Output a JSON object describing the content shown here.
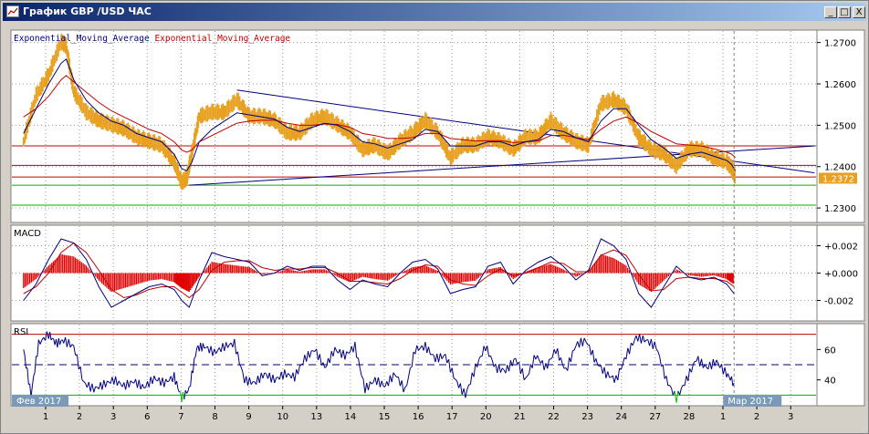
{
  "window": {
    "title": "График GBP /USD ЧАС",
    "buttons": {
      "minimize": "_",
      "restore": "□",
      "close": "X"
    }
  },
  "chart_data": {
    "type": "line",
    "symbol": "GBP /USD",
    "timeframe": "ЧАС",
    "panels": [
      {
        "name": "price",
        "legend": [
          "Exponential_Moving_Average",
          "Exponential_Moving_Average"
        ],
        "legend_colors": [
          "#000080",
          "#c00000"
        ],
        "ylim": [
          1.2265,
          1.273
        ],
        "yticks": [
          "1.2700",
          "1.2600",
          "1.2500",
          "1.2400",
          "1.2300"
        ],
        "ytick_values": [
          1.27,
          1.26,
          1.25,
          1.24,
          1.23
        ],
        "current_price_label": "1.2372",
        "current_price": 1.2372,
        "x": [
          1,
          1.5,
          2,
          2.5,
          2.7,
          3,
          3.5,
          4,
          4.5,
          5,
          5.5,
          6,
          6.5,
          7,
          7.3,
          7.5,
          7.7,
          8,
          8.5,
          9,
          9.5,
          10,
          10.5,
          11,
          11.5,
          12,
          12.5,
          13,
          13.5,
          14,
          14.5,
          15,
          15.5,
          16,
          16.5,
          17,
          17.5,
          18,
          18.5,
          19,
          19.5,
          20,
          20.5,
          21,
          21.5,
          22,
          22.5,
          23,
          23.5,
          24,
          24.5,
          25,
          25.5,
          26,
          26.5,
          27,
          27.5,
          28,
          28.5,
          29,
          29.2,
          29.35
        ],
        "close": [
          1.246,
          1.257,
          1.262,
          1.27,
          1.269,
          1.258,
          1.253,
          1.251,
          1.25,
          1.249,
          1.247,
          1.246,
          1.245,
          1.241,
          1.236,
          1.237,
          1.243,
          1.252,
          1.253,
          1.253,
          1.256,
          1.252,
          1.252,
          1.251,
          1.248,
          1.248,
          1.251,
          1.252,
          1.25,
          1.248,
          1.244,
          1.245,
          1.243,
          1.246,
          1.248,
          1.251,
          1.248,
          1.242,
          1.245,
          1.245,
          1.247,
          1.246,
          1.244,
          1.247,
          1.247,
          1.251,
          1.248,
          1.246,
          1.245,
          1.255,
          1.256,
          1.254,
          1.247,
          1.244,
          1.243,
          1.24,
          1.244,
          1.244,
          1.242,
          1.241,
          1.2395,
          1.2372
        ],
        "ema_fast": [
          1.248,
          1.254,
          1.26,
          1.265,
          1.266,
          1.261,
          1.256,
          1.253,
          1.251,
          1.25,
          1.248,
          1.247,
          1.246,
          1.243,
          1.2395,
          1.239,
          1.241,
          1.246,
          1.249,
          1.251,
          1.253,
          1.2525,
          1.252,
          1.2515,
          1.2495,
          1.2485,
          1.2495,
          1.2505,
          1.25,
          1.2485,
          1.246,
          1.2455,
          1.2445,
          1.2455,
          1.2465,
          1.249,
          1.2485,
          1.245,
          1.245,
          1.245,
          1.246,
          1.246,
          1.245,
          1.246,
          1.2465,
          1.249,
          1.2485,
          1.247,
          1.246,
          1.251,
          1.254,
          1.254,
          1.25,
          1.2465,
          1.2445,
          1.242,
          1.243,
          1.2435,
          1.2425,
          1.2415,
          1.2405,
          1.239
        ],
        "ema_slow": [
          1.252,
          1.254,
          1.257,
          1.261,
          1.262,
          1.2605,
          1.258,
          1.2555,
          1.2535,
          1.252,
          1.2505,
          1.249,
          1.248,
          1.246,
          1.244,
          1.2435,
          1.244,
          1.246,
          1.2475,
          1.249,
          1.2505,
          1.251,
          1.2512,
          1.2512,
          1.2505,
          1.25,
          1.25,
          1.2503,
          1.2502,
          1.2495,
          1.248,
          1.2475,
          1.2468,
          1.2468,
          1.247,
          1.248,
          1.248,
          1.2468,
          1.2465,
          1.2462,
          1.2463,
          1.2463,
          1.2458,
          1.246,
          1.2462,
          1.2475,
          1.2476,
          1.247,
          1.2465,
          1.249,
          1.251,
          1.252,
          1.2505,
          1.2485,
          1.247,
          1.2455,
          1.2452,
          1.245,
          1.2443,
          1.2435,
          1.243,
          1.2422
        ],
        "horizontal_levels": [
          {
            "value": 1.245,
            "color": "#c00000"
          },
          {
            "value": 1.2403,
            "color": "#c00000"
          },
          {
            "value": 1.2375,
            "color": "#c00000"
          },
          {
            "value": 1.2355,
            "color": "#00b000"
          },
          {
            "value": 1.2307,
            "color": "#00b000"
          }
        ],
        "trendlines": [
          {
            "from": [
              9.5,
              1.2585
            ],
            "to": [
              32.5,
              1.2385
            ],
            "color": "#000080"
          },
          {
            "from": [
              7.6,
              1.2355
            ],
            "to": [
              32.5,
              1.245
            ],
            "color": "#000080"
          }
        ]
      },
      {
        "name": "MACD",
        "label": "MACD",
        "ylim": [
          -0.0035,
          0.0035
        ],
        "yticks": [
          "+0.002",
          "+0.000",
          "-0.002"
        ],
        "ytick_values": [
          0.002,
          0.0,
          -0.002
        ],
        "x": [
          1,
          1.5,
          2,
          2.5,
          3,
          3.5,
          4,
          4.5,
          5,
          5.5,
          6,
          6.5,
          7,
          7.3,
          7.6,
          8,
          8.5,
          9,
          9.5,
          10,
          10.5,
          11,
          11.5,
          12,
          12.5,
          13,
          13.5,
          14,
          14.5,
          15,
          15.5,
          16,
          16.5,
          17,
          17.5,
          18,
          18.5,
          19,
          19.5,
          20,
          20.5,
          21,
          21.5,
          22,
          22.5,
          23,
          23.5,
          24,
          24.5,
          25,
          25.5,
          26,
          26.5,
          27,
          27.5,
          28,
          28.5,
          29,
          29.3
        ],
        "macd": [
          -0.002,
          -0.0008,
          0.001,
          0.0025,
          0.0022,
          0.001,
          -0.001,
          -0.0025,
          -0.002,
          -0.0015,
          -0.001,
          -0.0008,
          -0.0012,
          -0.002,
          -0.0025,
          -0.0005,
          0.0015,
          0.0012,
          0.001,
          0.0008,
          -0.0002,
          0.0,
          0.0005,
          0.0002,
          0.0005,
          0.0005,
          -0.0005,
          -0.0012,
          -0.0005,
          -0.0008,
          -0.001,
          0.0,
          0.0008,
          0.001,
          0.0003,
          -0.0015,
          -0.0012,
          -0.001,
          0.0005,
          0.0008,
          -0.0008,
          0.0002,
          0.0008,
          0.0012,
          0.0005,
          -0.0005,
          0.0002,
          0.0025,
          0.002,
          0.001,
          -0.0015,
          -0.0025,
          -0.001,
          0.0005,
          -0.0003,
          -0.0005,
          -0.0003,
          -0.0008,
          -0.0015
        ],
        "signal": [
          -0.0015,
          -0.001,
          0.0,
          0.0015,
          0.0022,
          0.0015,
          0.0002,
          -0.0012,
          -0.0018,
          -0.0016,
          -0.0012,
          -0.001,
          -0.001,
          -0.0014,
          -0.0018,
          -0.0012,
          0.0002,
          0.0008,
          0.0009,
          0.0009,
          0.0004,
          0.0002,
          0.0003,
          0.0003,
          0.0004,
          0.0004,
          0.0,
          -0.0006,
          -0.0006,
          -0.0007,
          -0.0008,
          -0.0004,
          0.0002,
          0.0006,
          0.0005,
          -0.0005,
          -0.0008,
          -0.0009,
          -0.0002,
          0.0003,
          -0.0002,
          0.0,
          0.0004,
          0.0008,
          0.0007,
          0.0001,
          0.0001,
          0.0013,
          0.0017,
          0.0013,
          -0.0001,
          -0.0013,
          -0.0012,
          -0.0004,
          -0.0003,
          -0.0004,
          -0.0004,
          -0.0006,
          -0.001
        ]
      },
      {
        "name": "RSI",
        "label": "RSI",
        "ylim": [
          23,
          77
        ],
        "yticks": [
          "60",
          "40"
        ],
        "ytick_values": [
          60,
          40
        ],
        "levels": [
          {
            "value": 70,
            "color": "#c00000"
          },
          {
            "value": 50,
            "color": "#000080",
            "dashed": true
          },
          {
            "value": 30,
            "color": "#00b000"
          }
        ],
        "x": [
          1,
          1.3,
          1.6,
          2,
          2.3,
          2.6,
          3,
          3.4,
          3.8,
          4.2,
          4.6,
          5,
          5.4,
          5.8,
          6.2,
          6.6,
          7,
          7.3,
          7.6,
          7.9,
          8.2,
          8.6,
          9,
          9.4,
          9.8,
          10.2,
          10.6,
          11,
          11.4,
          11.8,
          12.2,
          12.6,
          13,
          13.4,
          13.8,
          14.2,
          14.6,
          15,
          15.4,
          15.8,
          16.2,
          16.6,
          17,
          17.4,
          17.8,
          18.2,
          18.6,
          19,
          19.4,
          19.8,
          20.2,
          20.6,
          21,
          21.4,
          21.8,
          22.2,
          22.6,
          23,
          23.4,
          23.8,
          24.2,
          24.6,
          25,
          25.4,
          25.8,
          26.2,
          26.6,
          27,
          27.4,
          27.8,
          28.2,
          28.6,
          29,
          29.3
        ],
        "values": [
          60,
          30,
          64,
          70,
          64,
          66,
          62,
          38,
          34,
          37,
          40,
          36,
          39,
          35,
          41,
          38,
          42,
          28,
          34,
          61,
          62,
          58,
          62,
          64,
          40,
          38,
          44,
          40,
          44,
          42,
          54,
          60,
          48,
          60,
          56,
          62,
          34,
          40,
          36,
          44,
          33,
          60,
          62,
          54,
          56,
          40,
          30,
          48,
          62,
          48,
          46,
          54,
          40,
          56,
          48,
          60,
          46,
          63,
          66,
          52,
          44,
          40,
          56,
          68,
          66,
          62,
          40,
          28,
          40,
          54,
          48,
          52,
          44,
          38
        ]
      }
    ],
    "x_ticks": [
      {
        "x": 1,
        "label": "1"
      },
      {
        "x": 2,
        "label": "2"
      },
      {
        "x": 3,
        "label": "3"
      },
      {
        "x": 4,
        "label": "6"
      },
      {
        "x": 5,
        "label": "7"
      },
      {
        "x": 6,
        "label": "8"
      },
      {
        "x": 7,
        "label": "9"
      },
      {
        "x": 8,
        "label": "10"
      },
      {
        "x": 9,
        "label": "13"
      },
      {
        "x": 10,
        "label": "14"
      },
      {
        "x": 11,
        "label": "15"
      },
      {
        "x": 12,
        "label": "16"
      },
      {
        "x": 13,
        "label": "17"
      },
      {
        "x": 14,
        "label": "20"
      },
      {
        "x": 15,
        "label": "21"
      },
      {
        "x": 16,
        "label": "22"
      },
      {
        "x": 17,
        "label": "23"
      },
      {
        "x": 18,
        "label": "24"
      },
      {
        "x": 19,
        "label": "27"
      },
      {
        "x": 20,
        "label": "28"
      },
      {
        "x": 21,
        "label": "1"
      },
      {
        "x": 22,
        "label": "2"
      },
      {
        "x": 23,
        "label": "3"
      }
    ],
    "x_period_labels": {
      "start": "Фев 2017",
      "end": "Мар 2017"
    },
    "colors": {
      "price": "#e8a020",
      "ema_fast": "#000080",
      "ema_slow": "#c00000",
      "macd_hist": "#e00000",
      "macd": "#000080",
      "signal": "#c00000",
      "rsi": "#000080",
      "rsi_overbought": "#c000c0",
      "rsi_oversold": "#00c000",
      "grid": "#9a9a9a",
      "period_label_bg": "#7b9ab8"
    }
  }
}
